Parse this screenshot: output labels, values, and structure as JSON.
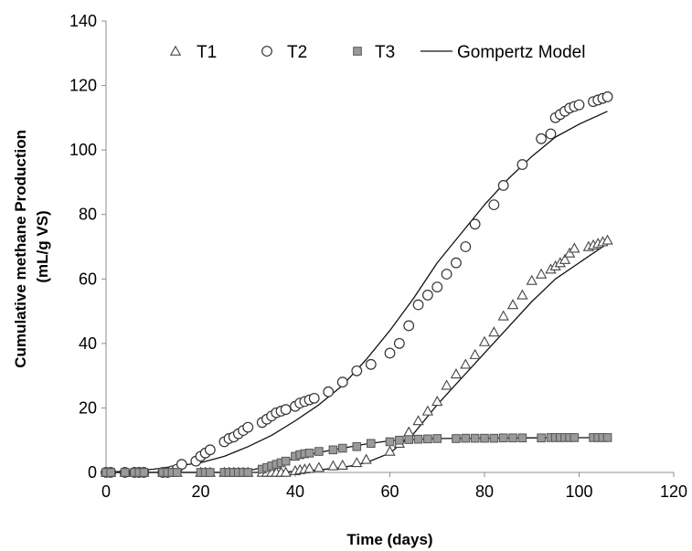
{
  "chart_data": {
    "type": "scatter",
    "xlabel": "Time (days)",
    "ylabel_line1": "Cumulative methane Production",
    "ylabel_line2": "(mL/g VS)",
    "xlim": [
      0,
      120
    ],
    "ylim": [
      0,
      140
    ],
    "xticks": [
      0,
      20,
      40,
      60,
      80,
      100,
      120
    ],
    "yticks": [
      0,
      20,
      40,
      60,
      80,
      100,
      120,
      140
    ],
    "grid": false,
    "legend_position": "top",
    "legend": [
      "T1",
      "T2",
      "T3",
      "Gompertz Model"
    ],
    "series": [
      {
        "name": "T1",
        "marker": "triangle-open",
        "x": [
          0,
          1,
          4,
          6,
          7,
          8,
          12,
          13,
          14,
          15,
          20,
          21,
          22,
          25,
          26,
          27,
          28,
          29,
          30,
          33,
          34,
          35,
          36,
          37,
          38,
          40,
          41,
          42,
          43,
          45,
          48,
          50,
          53,
          55,
          60,
          62,
          64,
          66,
          68,
          70,
          72,
          74,
          76,
          78,
          80,
          82,
          84,
          86,
          88,
          90,
          92,
          94,
          95,
          96,
          97,
          98,
          99,
          102,
          103,
          104,
          105,
          106
        ],
        "y": [
          0,
          0,
          0,
          0,
          0,
          0,
          0,
          0,
          0,
          0,
          0,
          0,
          0,
          0,
          0,
          0,
          0,
          0,
          0,
          0,
          0,
          0,
          0,
          0,
          0,
          0.5,
          0.8,
          1,
          1.2,
          1.5,
          2,
          2.2,
          3,
          4,
          6.5,
          9,
          12.5,
          16,
          19,
          22,
          27,
          30.5,
          33.5,
          36.5,
          40.5,
          43.5,
          48.5,
          52,
          55,
          59.5,
          61.5,
          63,
          64,
          65,
          66,
          68,
          69.5,
          70,
          70.5,
          71,
          71.5,
          72
        ]
      },
      {
        "name": "T2",
        "marker": "circle-open",
        "x": [
          0,
          1,
          4,
          6,
          7,
          8,
          12,
          13,
          14,
          15,
          16,
          19,
          20,
          21,
          22,
          25,
          26,
          27,
          28,
          29,
          30,
          33,
          34,
          35,
          36,
          37,
          38,
          40,
          41,
          42,
          43,
          44,
          47,
          50,
          53,
          56,
          60,
          62,
          64,
          66,
          68,
          70,
          72,
          74,
          76,
          78,
          82,
          84,
          88,
          92,
          94,
          95,
          96,
          97,
          98,
          99,
          100,
          103,
          104,
          105,
          106
        ],
        "y": [
          0,
          0,
          0,
          0,
          0,
          0,
          0,
          0,
          0.5,
          1,
          2.5,
          3.5,
          5,
          6,
          7,
          9.5,
          10.5,
          11,
          12,
          13,
          14,
          15.5,
          16.5,
          17.5,
          18.5,
          19,
          19.5,
          20.5,
          21.5,
          22,
          22.5,
          23,
          25,
          28,
          31.5,
          33.5,
          37,
          40,
          45.5,
          52,
          55,
          57.5,
          61.5,
          65,
          70,
          77,
          83,
          89,
          95.5,
          103.5,
          105,
          110,
          111,
          112,
          113,
          113.5,
          114,
          115,
          115.5,
          116,
          116.5
        ]
      },
      {
        "name": "T3",
        "marker": "square-filled",
        "x": [
          0,
          1,
          4,
          6,
          7,
          8,
          12,
          13,
          14,
          15,
          20,
          21,
          22,
          25,
          26,
          27,
          28,
          29,
          30,
          33,
          34,
          35,
          36,
          37,
          38,
          40,
          41,
          42,
          43,
          45,
          48,
          50,
          53,
          56,
          60,
          62,
          64,
          66,
          68,
          70,
          74,
          76,
          78,
          80,
          82,
          84,
          86,
          88,
          92,
          94,
          95,
          96,
          97,
          98,
          99,
          103,
          104,
          105,
          106
        ],
        "y": [
          0,
          0,
          0,
          0,
          0,
          0,
          0,
          0,
          0,
          0,
          0,
          0,
          0,
          0,
          0,
          0,
          0,
          0,
          0,
          1,
          1.5,
          2,
          2.5,
          3,
          3.5,
          5,
          5.5,
          5.8,
          6,
          6.5,
          7,
          7.5,
          8,
          9,
          9.5,
          10,
          10.2,
          10.3,
          10.4,
          10.5,
          10.5,
          10.6,
          10.6,
          10.6,
          10.6,
          10.7,
          10.7,
          10.7,
          10.7,
          10.8,
          10.8,
          10.8,
          10.8,
          10.8,
          10.8,
          10.8,
          10.8,
          10.8,
          10.8
        ]
      },
      {
        "name": "Gompertz Model",
        "marker": "line",
        "curves": [
          {
            "x": [
              0,
              10,
              20,
              25,
              30,
              35,
              40,
              45,
              50,
              55,
              60,
              65,
              70,
              75,
              80,
              85,
              90,
              95,
              100,
              106
            ],
            "y": [
              0,
              1,
              3,
              5,
              8,
              11.5,
              16,
              21,
              27,
              35,
              44,
              54,
              65,
              74,
              83,
              91,
              98,
              104,
              108,
              112
            ]
          },
          {
            "x": [
              0,
              35,
              40,
              45,
              50,
              55,
              60,
              65,
              70,
              75,
              80,
              85,
              90,
              95,
              100,
              106
            ],
            "y": [
              0,
              0,
              0.3,
              0.8,
              1.5,
              3,
              6,
              12,
              21,
              29,
              37,
              45,
              53,
              60,
              65,
              71
            ]
          },
          {
            "x": [
              0,
              28,
              30,
              33,
              35,
              38,
              40,
              43,
              45,
              48,
              50,
              55,
              60,
              65,
              70,
              80,
              90,
              106
            ],
            "y": [
              0,
              0,
              0.5,
              1.5,
              2.5,
              3.5,
              4.5,
              5.5,
              6.2,
              7,
              7.5,
              8.8,
              9.8,
              10.2,
              10.5,
              10.6,
              10.7,
              10.8
            ]
          }
        ]
      }
    ]
  }
}
